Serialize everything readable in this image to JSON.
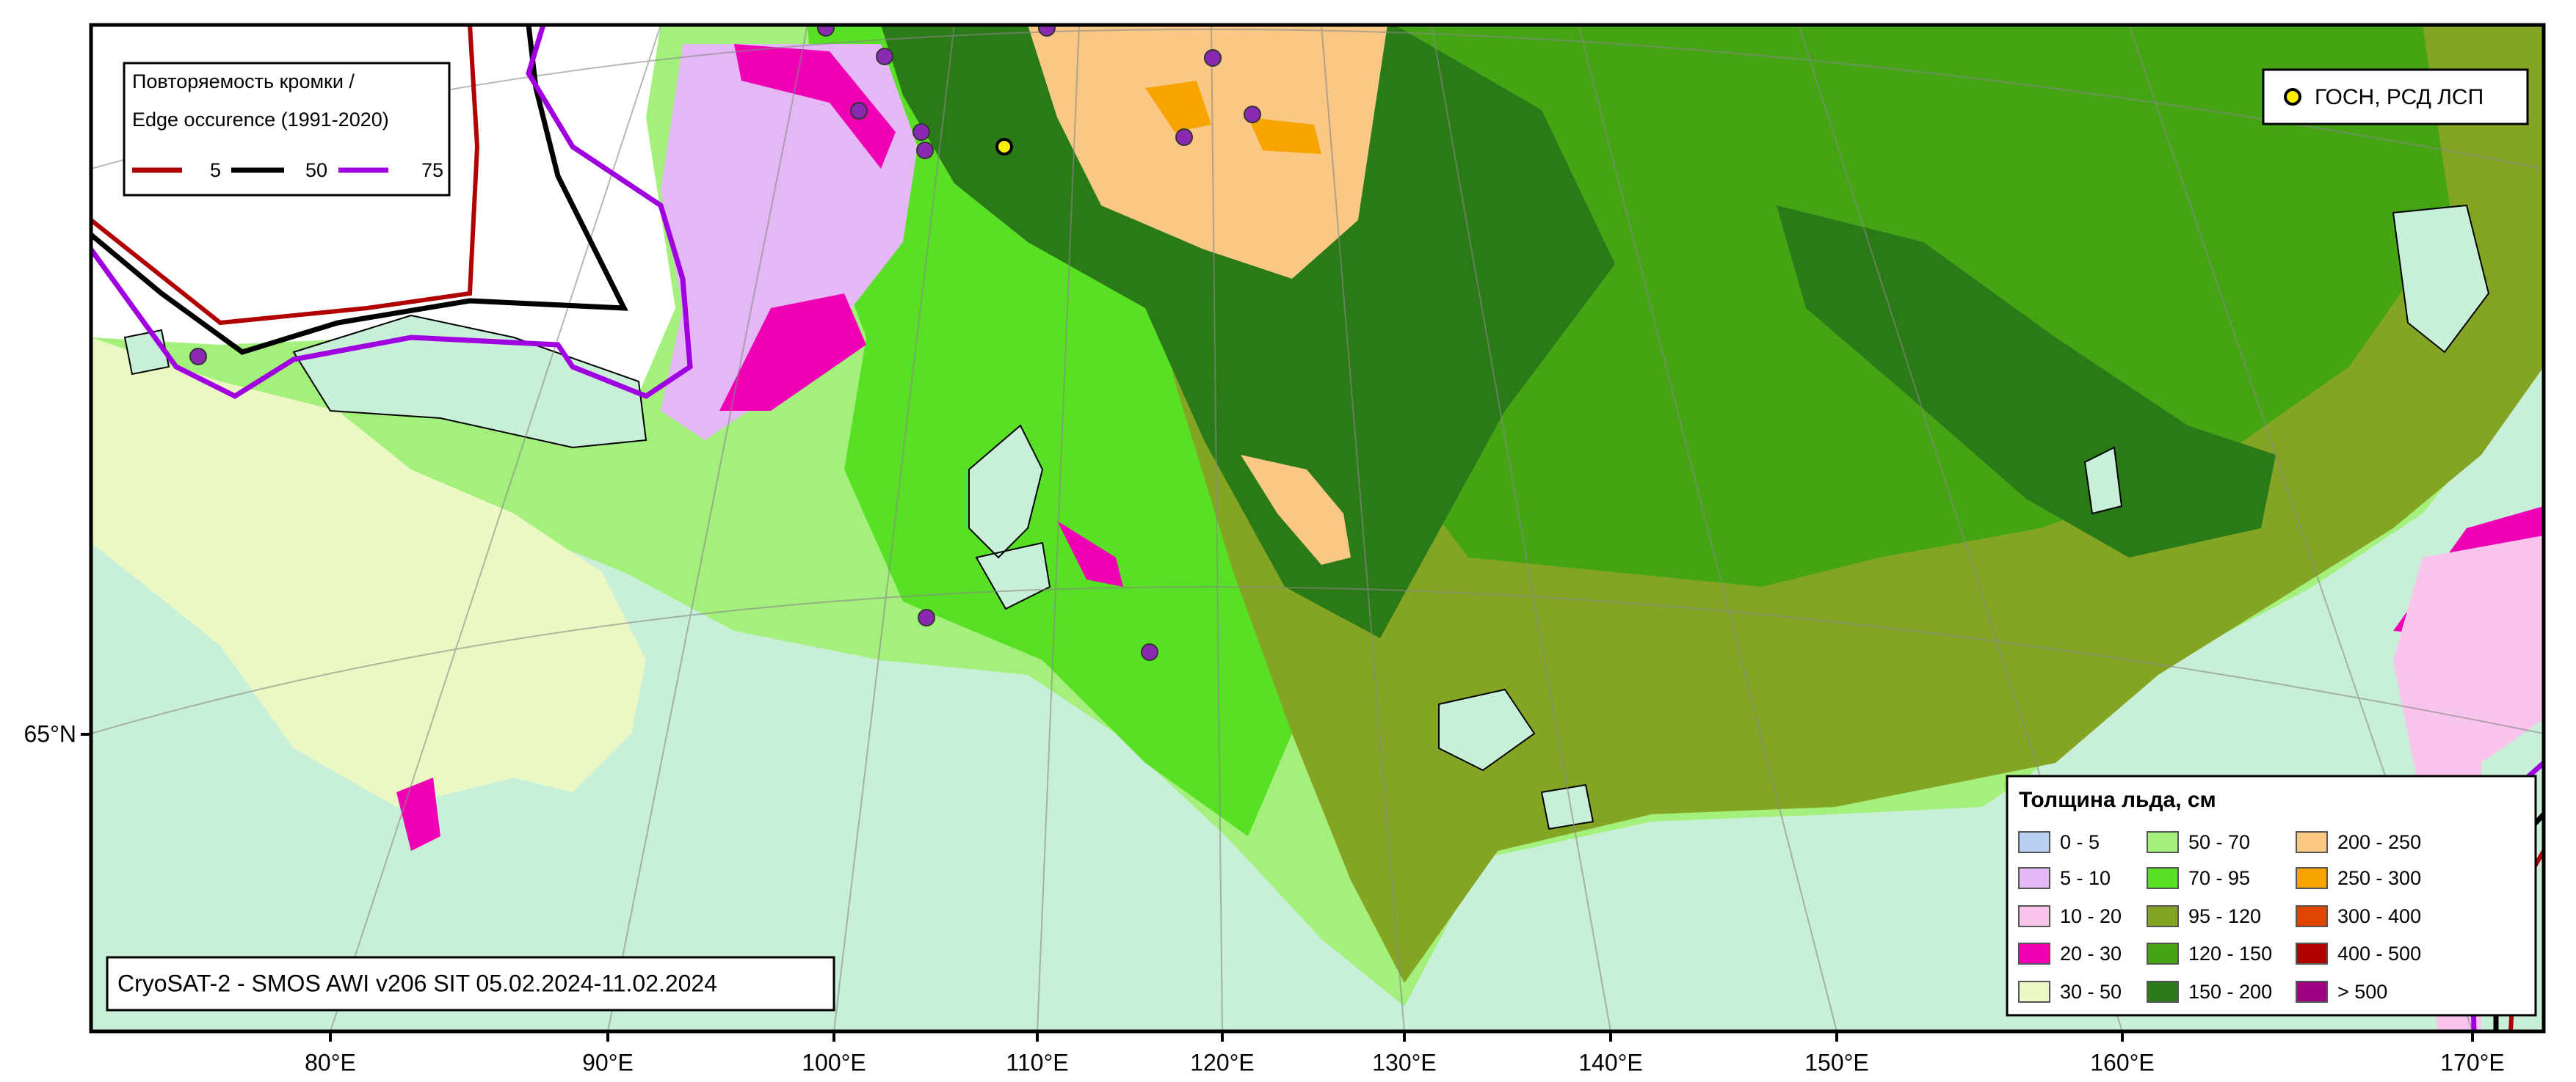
{
  "edge_legend": {
    "title": [
      "Повторяемость кромки /",
      "Edge occurence (1991-2020)"
    ],
    "items": [
      {
        "label": "5",
        "color": "#b00000"
      },
      {
        "label": "50",
        "color": "#000000"
      },
      {
        "label": "75",
        "color": "#a000e0"
      }
    ]
  },
  "station_legend": {
    "label": "ГОСН, РСД ЛСП",
    "color": "#ffee00"
  },
  "thickness_legend": {
    "title": "Толщина льда, см",
    "items": [
      {
        "label": "0 - 5",
        "color": "#b8d0f4"
      },
      {
        "label": "5 - 10",
        "color": "#e4b8f4"
      },
      {
        "label": "10 - 20",
        "color": "#f8c4ec"
      },
      {
        "label": "20 - 30",
        "color": "#f000b4"
      },
      {
        "label": "30 - 50",
        "color": "#ecf8c4"
      },
      {
        "label": "50 - 70",
        "color": "#a4f07c"
      },
      {
        "label": "70 - 95",
        "color": "#58e024"
      },
      {
        "label": "95 - 120",
        "color": "#84a424"
      },
      {
        "label": "120 - 150",
        "color": "#44a414"
      },
      {
        "label": "150 - 200",
        "color": "#2a7a18"
      },
      {
        "label": "200 - 250",
        "color": "#f8c884"
      },
      {
        "label": "250 - 300",
        "color": "#f8a400"
      },
      {
        "label": "300 - 400",
        "color": "#e04400"
      },
      {
        "label": "400 - 500",
        "color": "#b00000"
      },
      {
        "label": "> 500",
        "color": "#a00084"
      }
    ]
  },
  "caption": "CryoSAT-2 - SMOS AWI v206 SIT 05.02.2024-11.02.2024",
  "lon_labels": [
    "80°E",
    "90°E",
    "100°E",
    "110°E",
    "120°E",
    "130°E",
    "140°E",
    "150°E",
    "160°E",
    "170°E"
  ],
  "lat_labels": [
    "65°N"
  ]
}
